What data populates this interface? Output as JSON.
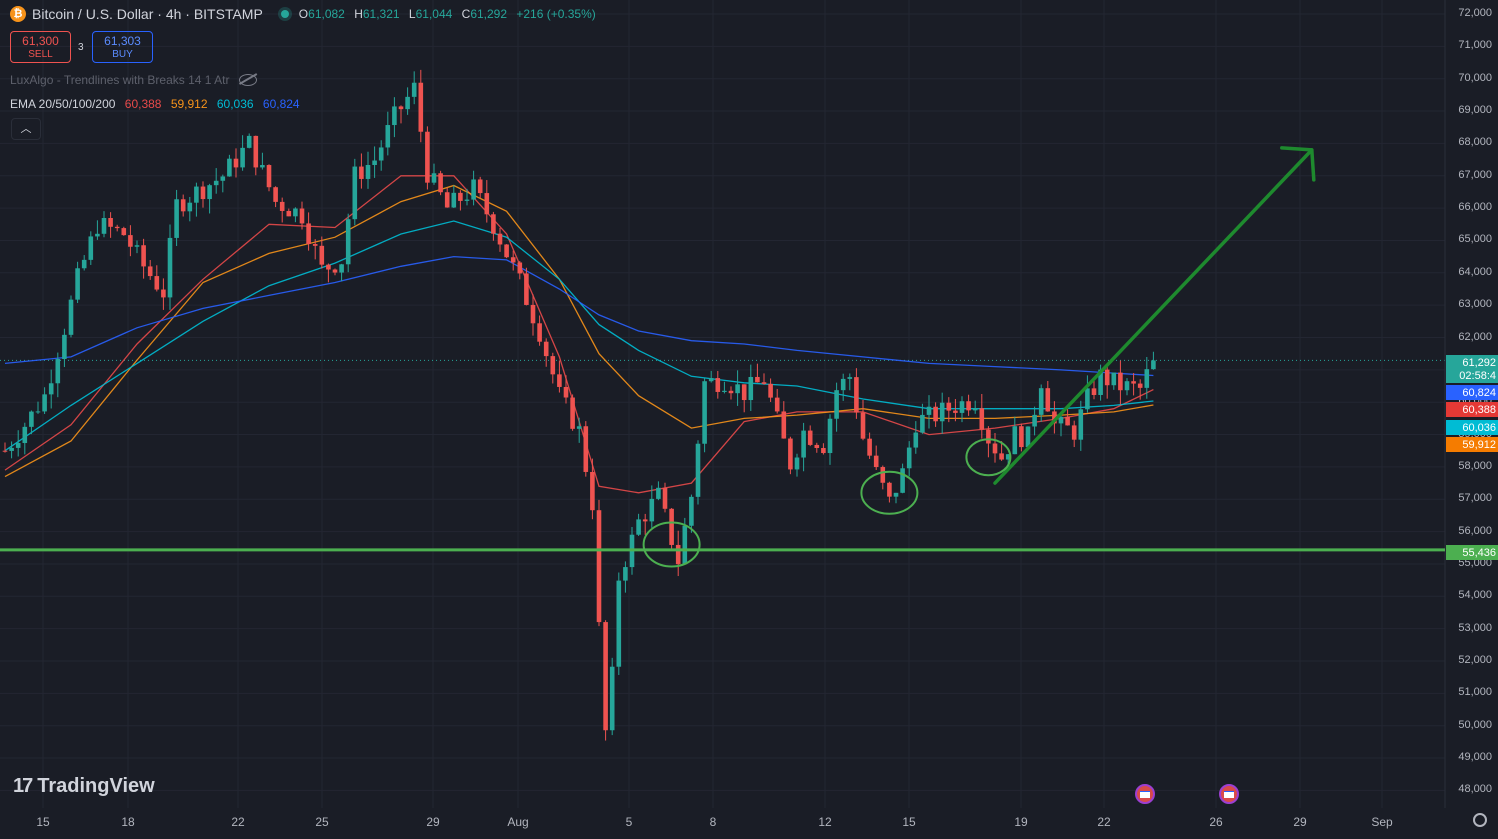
{
  "header": {
    "symbol": "Bitcoin / U.S. Dollar · 4h · BITSTAMP",
    "icon": "bitcoin-icon",
    "open_label": "O",
    "open": "61,082",
    "high_label": "H",
    "high": "61,321",
    "low_label": "L",
    "low": "61,044",
    "close_label": "C",
    "close": "61,292",
    "change": "+216 (+0.35%)"
  },
  "trade": {
    "sell_price": "61,300",
    "sell_label": "SELL",
    "spread": "3",
    "buy_price": "61,303",
    "buy_label": "BUY"
  },
  "indicators": {
    "luxalgo": "LuxAlgo - Trendlines with Breaks 14 1 Atr",
    "ema_label": "EMA 20/50/100/200",
    "ema20": "60,388",
    "ema50": "59,912",
    "ema100": "60,036",
    "ema200": "60,824"
  },
  "price_labels": {
    "last_price": "61,292",
    "countdown": "02:58:4",
    "ema200": "60,824",
    "ema20": "60,388",
    "ema100": "60,036",
    "ema50": "59,912",
    "support": "55,436"
  },
  "branding": {
    "logo": "TradingView"
  },
  "colors": {
    "up": "#26a69a",
    "down": "#ef5350",
    "ema20": "#e84a4a",
    "ema50": "#f7931a",
    "ema100": "#00bcd4",
    "ema200": "#2962ff",
    "support": "#4caf50",
    "arrow": "#1e8a2e",
    "circles": "#4caf50"
  },
  "chart_data": {
    "type": "candlestick",
    "timeframe": "4h",
    "ylim": [
      47700,
      72300
    ],
    "y_ticks": [
      "72,000",
      "71,000",
      "70,000",
      "69,000",
      "68,000",
      "67,000",
      "66,000",
      "65,000",
      "64,000",
      "63,000",
      "62,000",
      "61,000",
      "60,000",
      "59,000",
      "58,000",
      "57,000",
      "56,000",
      "55,000",
      "54,000",
      "53,000",
      "52,000",
      "51,000",
      "50,000",
      "49,000",
      "48,000"
    ],
    "x_ticks": [
      "15",
      "18",
      "22",
      "25",
      "29",
      "Aug",
      "5",
      "8",
      "12",
      "15",
      "19",
      "22",
      "26",
      "29",
      "Sep"
    ],
    "close_path": [
      [
        0,
        58500
      ],
      [
        3,
        59300
      ],
      [
        6,
        60200
      ],
      [
        9,
        62300
      ],
      [
        11,
        63800
      ],
      [
        14,
        65500
      ],
      [
        18,
        65200
      ],
      [
        21,
        64200
      ],
      [
        24,
        63400
      ],
      [
        26,
        66100
      ],
      [
        29,
        66500
      ],
      [
        33,
        67000
      ],
      [
        37,
        68000
      ],
      [
        41,
        66200
      ],
      [
        45,
        65800
      ],
      [
        48,
        64100
      ],
      [
        51,
        64400
      ],
      [
        53,
        67000
      ],
      [
        56,
        67500
      ],
      [
        59,
        68800
      ],
      [
        62,
        69700
      ],
      [
        64,
        67100
      ],
      [
        67,
        66000
      ],
      [
        71,
        66600
      ],
      [
        74,
        65500
      ],
      [
        78,
        63700
      ],
      [
        81,
        62200
      ],
      [
        84,
        60200
      ],
      [
        87,
        59100
      ],
      [
        89,
        56900
      ],
      [
        90,
        53000
      ],
      [
        91,
        49800
      ],
      [
        92,
        51500
      ],
      [
        93,
        54600
      ],
      [
        96,
        56300
      ],
      [
        99,
        57100
      ],
      [
        102,
        55100
      ],
      [
        104,
        57100
      ],
      [
        106,
        60600
      ],
      [
        109,
        60700
      ],
      [
        112,
        60300
      ],
      [
        115,
        60700
      ],
      [
        117,
        59400
      ],
      [
        119,
        58100
      ],
      [
        121,
        59100
      ],
      [
        124,
        58700
      ],
      [
        126,
        60400
      ],
      [
        128,
        60800
      ],
      [
        130,
        58900
      ],
      [
        132,
        57800
      ],
      [
        134,
        56900
      ],
      [
        136,
        57800
      ],
      [
        138,
        59400
      ],
      [
        141,
        59600
      ],
      [
        144,
        59900
      ],
      [
        147,
        60100
      ],
      [
        149,
        58900
      ],
      [
        151,
        58300
      ],
      [
        153,
        59000
      ],
      [
        155,
        58900
      ],
      [
        157,
        60700
      ],
      [
        159,
        59300
      ],
      [
        162,
        59100
      ],
      [
        164,
        60100
      ],
      [
        166,
        60800
      ],
      [
        169,
        60500
      ],
      [
        172,
        60400
      ],
      [
        174,
        61292
      ]
    ],
    "series": [
      {
        "name": "EMA 20",
        "last": 60388,
        "values": [
          [
            0,
            57900
          ],
          [
            10,
            59300
          ],
          [
            20,
            61800
          ],
          [
            30,
            63800
          ],
          [
            40,
            65500
          ],
          [
            50,
            65400
          ],
          [
            60,
            67000
          ],
          [
            68,
            67000
          ],
          [
            76,
            65200
          ],
          [
            84,
            61400
          ],
          [
            90,
            57400
          ],
          [
            96,
            57200
          ],
          [
            104,
            57500
          ],
          [
            112,
            59400
          ],
          [
            120,
            59700
          ],
          [
            130,
            59700
          ],
          [
            140,
            59000
          ],
          [
            150,
            59200
          ],
          [
            160,
            59500
          ],
          [
            168,
            59800
          ],
          [
            174,
            60388
          ]
        ]
      },
      {
        "name": "EMA 50",
        "last": 59912,
        "values": [
          [
            0,
            57700
          ],
          [
            10,
            58800
          ],
          [
            20,
            61300
          ],
          [
            30,
            63700
          ],
          [
            40,
            64600
          ],
          [
            50,
            65100
          ],
          [
            60,
            66200
          ],
          [
            68,
            66700
          ],
          [
            76,
            65900
          ],
          [
            84,
            63800
          ],
          [
            90,
            61500
          ],
          [
            96,
            60200
          ],
          [
            104,
            59200
          ],
          [
            112,
            59500
          ],
          [
            120,
            59600
          ],
          [
            130,
            59800
          ],
          [
            140,
            59500
          ],
          [
            150,
            59500
          ],
          [
            160,
            59600
          ],
          [
            168,
            59700
          ],
          [
            174,
            59912
          ]
        ]
      },
      {
        "name": "EMA 100",
        "last": 60036,
        "values": [
          [
            0,
            58500
          ],
          [
            10,
            59900
          ],
          [
            20,
            61200
          ],
          [
            30,
            62500
          ],
          [
            40,
            63600
          ],
          [
            50,
            64300
          ],
          [
            60,
            65200
          ],
          [
            68,
            65600
          ],
          [
            76,
            65100
          ],
          [
            84,
            63800
          ],
          [
            90,
            62400
          ],
          [
            96,
            61600
          ],
          [
            104,
            60800
          ],
          [
            112,
            60600
          ],
          [
            120,
            60500
          ],
          [
            130,
            60100
          ],
          [
            140,
            59800
          ],
          [
            150,
            59800
          ],
          [
            160,
            59800
          ],
          [
            168,
            59900
          ],
          [
            174,
            60036
          ]
        ]
      },
      {
        "name": "EMA 200",
        "last": 60824,
        "values": [
          [
            0,
            61200
          ],
          [
            10,
            61400
          ],
          [
            20,
            62300
          ],
          [
            30,
            62900
          ],
          [
            40,
            63300
          ],
          [
            50,
            63700
          ],
          [
            60,
            64200
          ],
          [
            68,
            64500
          ],
          [
            76,
            64400
          ],
          [
            84,
            63500
          ],
          [
            90,
            62700
          ],
          [
            96,
            62200
          ],
          [
            104,
            61900
          ],
          [
            112,
            61800
          ],
          [
            120,
            61600
          ],
          [
            130,
            61400
          ],
          [
            140,
            61200
          ],
          [
            150,
            61100
          ],
          [
            160,
            61000
          ],
          [
            168,
            60900
          ],
          [
            174,
            60824
          ]
        ]
      }
    ],
    "annotations": {
      "support_level": 55436,
      "arrow": {
        "from": [
          150,
          57500
        ],
        "to": [
          198,
          67800
        ]
      },
      "circles": [
        [
          101,
          55600
        ],
        [
          134,
          57200
        ],
        [
          149,
          58300
        ]
      ]
    }
  }
}
